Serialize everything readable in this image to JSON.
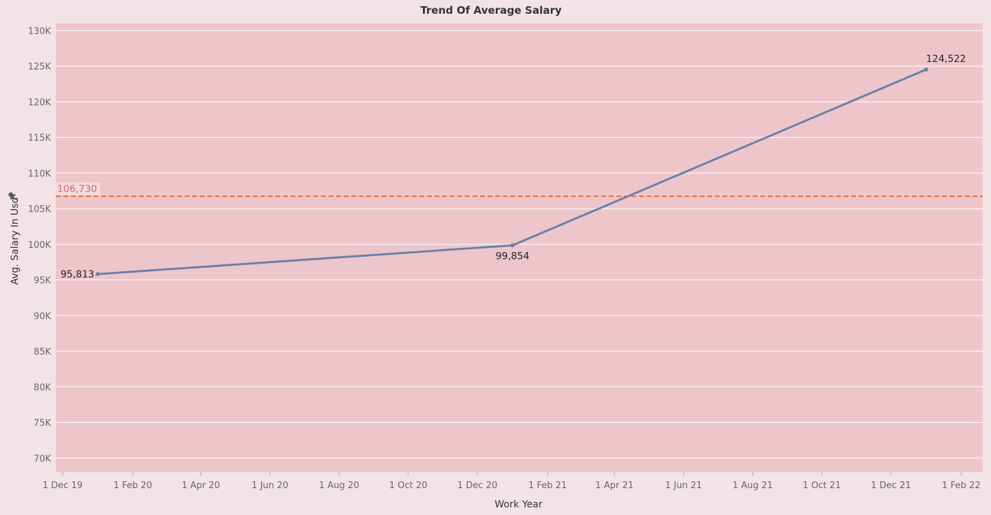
{
  "chart_data": {
    "type": "line",
    "title": "Trend Of Average Salary",
    "xlabel": "Work Year",
    "ylabel": "Avg. Salary In Usd",
    "x_axis_type": "date",
    "xlim": [
      "2019-11-25",
      "2022-02-20"
    ],
    "ylim": [
      68000,
      131000
    ],
    "y_ticks": [
      70000,
      75000,
      80000,
      85000,
      90000,
      95000,
      100000,
      105000,
      110000,
      115000,
      120000,
      125000,
      130000
    ],
    "y_tick_labels": [
      "70K",
      "75K",
      "80K",
      "85K",
      "90K",
      "95K",
      "100K",
      "105K",
      "110K",
      "115K",
      "120K",
      "125K",
      "130K"
    ],
    "x_ticks": [
      "2019-12-01",
      "2020-02-01",
      "2020-04-01",
      "2020-06-01",
      "2020-08-01",
      "2020-10-01",
      "2020-12-01",
      "2021-02-01",
      "2021-04-01",
      "2021-06-01",
      "2021-08-01",
      "2021-10-01",
      "2021-12-01",
      "2022-02-01"
    ],
    "x_tick_labels": [
      "1 Dec 19",
      "1 Feb 20",
      "1 Apr 20",
      "1 Jun 20",
      "1 Aug 20",
      "1 Oct 20",
      "1 Dec 20",
      "1 Feb 21",
      "1 Apr 21",
      "1 Jun 21",
      "1 Aug 21",
      "1 Oct 21",
      "1 Dec 21",
      "1 Feb 22"
    ],
    "series": [
      {
        "x": [
          "2020-01-01",
          "2021-01-01",
          "2022-01-01"
        ],
        "values": [
          95813,
          99854,
          124522
        ],
        "labels": [
          "95,813",
          "99,854",
          "124,522"
        ],
        "color": "#6b80a6"
      }
    ],
    "reference_line": {
      "value": 106730,
      "label": "106,730",
      "color": "#e8703a",
      "label_color": "#d46a6a"
    },
    "grid": true,
    "colors": {
      "plot_background": "#edc6cc",
      "page_background": "#f2e4e6",
      "gridline": "#ffffff"
    },
    "ylabel_icon": "pin-icon"
  }
}
